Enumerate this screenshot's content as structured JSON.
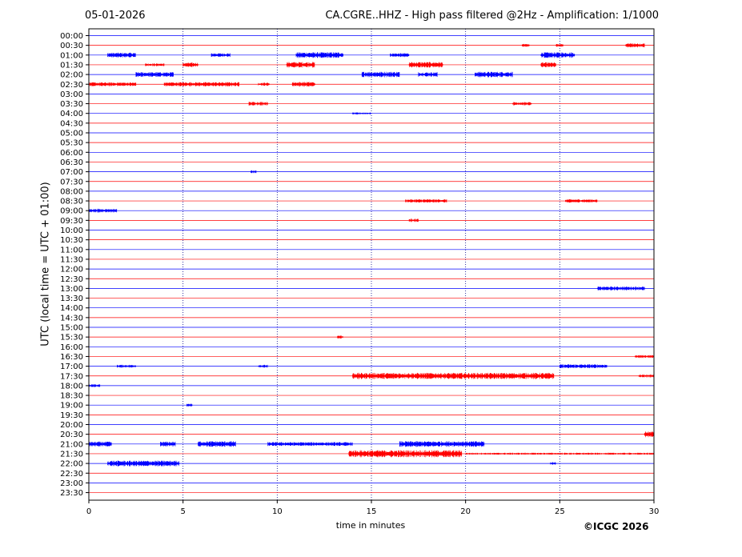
{
  "header": {
    "date": "05-01-2026",
    "title": "CA.CGRE..HHZ - High pass filtered @2Hz - Amplification: 1/1000"
  },
  "footer": {
    "copyright": "©ICGC 2026"
  },
  "chart_data": {
    "type": "line",
    "title": "CA.CGRE..HHZ - High pass filtered @2Hz - Amplification: 1/1000",
    "xlabel": "time in minutes",
    "ylabel": "UTC (local time = UTC + 01:00)",
    "xlim": [
      0,
      30
    ],
    "x_ticks": [
      0,
      5,
      10,
      15,
      20,
      25,
      30
    ],
    "grid": "vertical dotted at 5-minute intervals",
    "colors": {
      "odd_trace": "#ff0000",
      "even_trace": "#0000ff",
      "grid": "#00008b"
    },
    "rows": [
      {
        "label": "00:00",
        "bursts": []
      },
      {
        "label": "00:30",
        "bursts": [
          {
            "t0": 23.0,
            "t1": 23.4,
            "amp": 0.3
          },
          {
            "t0": 24.8,
            "t1": 25.2,
            "amp": 0.3
          },
          {
            "t0": 28.5,
            "t1": 29.5,
            "amp": 0.45
          }
        ]
      },
      {
        "label": "01:00",
        "bursts": [
          {
            "t0": 1.0,
            "t1": 2.5,
            "amp": 0.5
          },
          {
            "t0": 6.5,
            "t1": 7.5,
            "amp": 0.4
          },
          {
            "t0": 11.0,
            "t1": 13.5,
            "amp": 0.6
          },
          {
            "t0": 16.0,
            "t1": 17.0,
            "amp": 0.4
          },
          {
            "t0": 24.0,
            "t1": 25.8,
            "amp": 0.6
          }
        ]
      },
      {
        "label": "01:30",
        "bursts": [
          {
            "t0": 3.0,
            "t1": 4.0,
            "amp": 0.3
          },
          {
            "t0": 5.0,
            "t1": 5.8,
            "amp": 0.45
          },
          {
            "t0": 10.5,
            "t1": 12.0,
            "amp": 0.6
          },
          {
            "t0": 17.0,
            "t1": 18.8,
            "amp": 0.6
          },
          {
            "t0": 24.0,
            "t1": 24.8,
            "amp": 0.5
          }
        ]
      },
      {
        "label": "02:00",
        "bursts": [
          {
            "t0": 2.5,
            "t1": 4.5,
            "amp": 0.5
          },
          {
            "t0": 14.5,
            "t1": 16.5,
            "amp": 0.6
          },
          {
            "t0": 17.5,
            "t1": 18.5,
            "amp": 0.5
          },
          {
            "t0": 20.5,
            "t1": 22.5,
            "amp": 0.6
          }
        ]
      },
      {
        "label": "02:30",
        "bursts": [
          {
            "t0": 0.0,
            "t1": 2.5,
            "amp": 0.4
          },
          {
            "t0": 4.0,
            "t1": 8.0,
            "amp": 0.45
          },
          {
            "t0": 9.0,
            "t1": 9.6,
            "amp": 0.35
          },
          {
            "t0": 10.8,
            "t1": 12.0,
            "amp": 0.5
          }
        ]
      },
      {
        "label": "03:00",
        "bursts": []
      },
      {
        "label": "03:30",
        "bursts": [
          {
            "t0": 8.5,
            "t1": 9.5,
            "amp": 0.4
          },
          {
            "t0": 22.5,
            "t1": 23.5,
            "amp": 0.35
          }
        ]
      },
      {
        "label": "04:00",
        "bursts": [
          {
            "t0": 14.0,
            "t1": 15.0,
            "amp": 0.2
          }
        ]
      },
      {
        "label": "04:30",
        "bursts": []
      },
      {
        "label": "05:00",
        "bursts": []
      },
      {
        "label": "05:30",
        "bursts": []
      },
      {
        "label": "06:00",
        "bursts": []
      },
      {
        "label": "06:30",
        "bursts": []
      },
      {
        "label": "07:00",
        "bursts": [
          {
            "t0": 8.6,
            "t1": 8.9,
            "amp": 0.3
          }
        ]
      },
      {
        "label": "07:30",
        "bursts": []
      },
      {
        "label": "08:00",
        "bursts": []
      },
      {
        "label": "08:30",
        "bursts": [
          {
            "t0": 16.8,
            "t1": 19.0,
            "amp": 0.35
          },
          {
            "t0": 25.3,
            "t1": 27.0,
            "amp": 0.35
          }
        ]
      },
      {
        "label": "09:00",
        "bursts": [
          {
            "t0": 0.0,
            "t1": 1.5,
            "amp": 0.4
          }
        ]
      },
      {
        "label": "09:30",
        "bursts": [
          {
            "t0": 17.0,
            "t1": 17.5,
            "amp": 0.35
          }
        ]
      },
      {
        "label": "10:00",
        "bursts": []
      },
      {
        "label": "10:30",
        "bursts": []
      },
      {
        "label": "11:00",
        "bursts": []
      },
      {
        "label": "11:30",
        "bursts": []
      },
      {
        "label": "12:00",
        "bursts": []
      },
      {
        "label": "12:30",
        "bursts": []
      },
      {
        "label": "13:00",
        "bursts": [
          {
            "t0": 27.0,
            "t1": 29.5,
            "amp": 0.4
          }
        ]
      },
      {
        "label": "13:30",
        "bursts": []
      },
      {
        "label": "14:00",
        "bursts": []
      },
      {
        "label": "14:30",
        "bursts": []
      },
      {
        "label": "15:00",
        "bursts": []
      },
      {
        "label": "15:30",
        "bursts": [
          {
            "t0": 13.2,
            "t1": 13.5,
            "amp": 0.3
          }
        ]
      },
      {
        "label": "16:00",
        "bursts": []
      },
      {
        "label": "16:30",
        "bursts": [
          {
            "t0": 29.0,
            "t1": 30.0,
            "amp": 0.3
          }
        ]
      },
      {
        "label": "17:00",
        "bursts": [
          {
            "t0": 1.5,
            "t1": 2.5,
            "amp": 0.3
          },
          {
            "t0": 9.0,
            "t1": 9.5,
            "amp": 0.3
          },
          {
            "t0": 25.0,
            "t1": 27.5,
            "amp": 0.4
          }
        ]
      },
      {
        "label": "17:30",
        "bursts": [
          {
            "t0": 14.0,
            "t1": 24.7,
            "amp": 0.65
          },
          {
            "t0": 29.2,
            "t1": 30.0,
            "amp": 0.3
          }
        ]
      },
      {
        "label": "18:00",
        "bursts": [
          {
            "t0": 0.0,
            "t1": 0.6,
            "amp": 0.3
          }
        ]
      },
      {
        "label": "18:30",
        "bursts": []
      },
      {
        "label": "19:00",
        "bursts": [
          {
            "t0": 5.2,
            "t1": 5.5,
            "amp": 0.3
          }
        ]
      },
      {
        "label": "19:30",
        "bursts": []
      },
      {
        "label": "20:00",
        "bursts": []
      },
      {
        "label": "20:30",
        "bursts": [
          {
            "t0": 29.5,
            "t1": 30.0,
            "amp": 0.6
          }
        ]
      },
      {
        "label": "21:00",
        "bursts": [
          {
            "t0": 0.0,
            "t1": 1.2,
            "amp": 0.5
          },
          {
            "t0": 3.8,
            "t1": 4.6,
            "amp": 0.5
          },
          {
            "t0": 5.8,
            "t1": 7.8,
            "amp": 0.6
          },
          {
            "t0": 9.5,
            "t1": 14.0,
            "amp": 0.4
          },
          {
            "t0": 16.5,
            "t1": 21.0,
            "amp": 0.6
          }
        ]
      },
      {
        "label": "21:30",
        "bursts": [
          {
            "t0": 13.8,
            "t1": 19.8,
            "amp": 0.75
          },
          {
            "t0": 20.0,
            "t1": 30.0,
            "amp": 0.2
          }
        ]
      },
      {
        "label": "22:00",
        "bursts": [
          {
            "t0": 1.0,
            "t1": 4.8,
            "amp": 0.6
          },
          {
            "t0": 24.5,
            "t1": 24.8,
            "amp": 0.3
          }
        ]
      },
      {
        "label": "22:30",
        "bursts": []
      },
      {
        "label": "23:00",
        "bursts": []
      },
      {
        "label": "23:30",
        "bursts": []
      }
    ]
  }
}
